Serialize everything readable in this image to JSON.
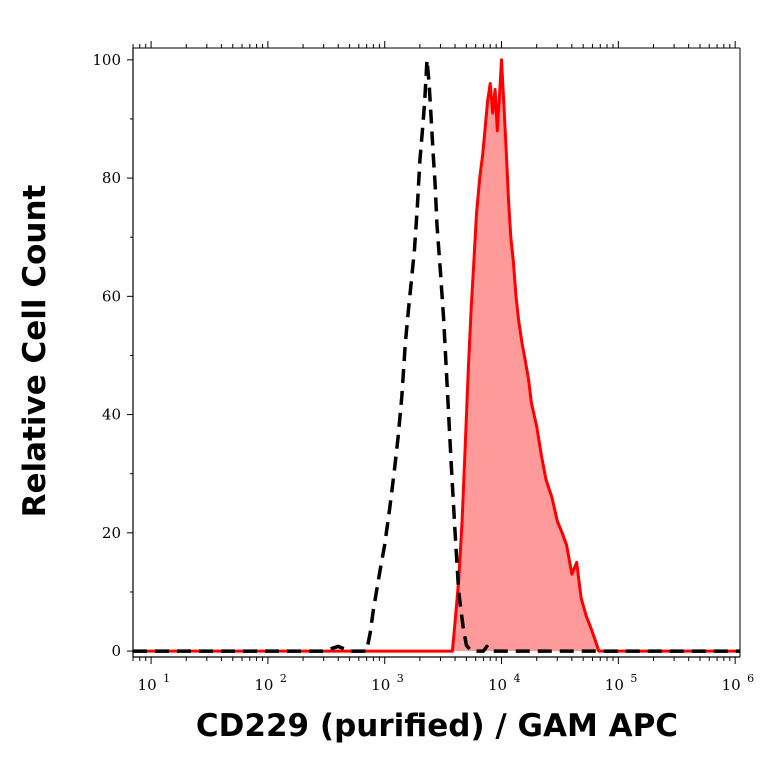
{
  "chart_data": {
    "type": "area",
    "title": "",
    "xlabel": "CD229 (purified) / GAM APC",
    "ylabel": "Relative Cell Count",
    "x_scale": "log",
    "xlim": [
      7,
      1100000
    ],
    "ylim": [
      -1,
      102
    ],
    "x_ticks": [
      {
        "base": "10",
        "exp": "1",
        "value": 10
      },
      {
        "base": "10",
        "exp": "2",
        "value": 100
      },
      {
        "base": "10",
        "exp": "3",
        "value": 1000
      },
      {
        "base": "10",
        "exp": "4",
        "value": 10000
      },
      {
        "base": "10",
        "exp": "5",
        "value": 100000
      },
      {
        "base": "10",
        "exp": "6",
        "value": 1000000
      }
    ],
    "y_ticks": [
      "0",
      "20",
      "40",
      "60",
      "80",
      "100"
    ],
    "grid": false,
    "series": [
      {
        "style": "dashed",
        "color": "#000000",
        "fill": "none",
        "points": [
          [
            7,
            0
          ],
          [
            300,
            0
          ],
          [
            400,
            0.8
          ],
          [
            500,
            0
          ],
          [
            700,
            0
          ],
          [
            750,
            3
          ],
          [
            800,
            7
          ],
          [
            900,
            13
          ],
          [
            1000,
            18
          ],
          [
            1100,
            24
          ],
          [
            1200,
            30
          ],
          [
            1300,
            36
          ],
          [
            1400,
            43
          ],
          [
            1500,
            52
          ],
          [
            1600,
            58
          ],
          [
            1700,
            63
          ],
          [
            1800,
            68
          ],
          [
            1900,
            75
          ],
          [
            2000,
            83
          ],
          [
            2100,
            88
          ],
          [
            2200,
            93
          ],
          [
            2300,
            100
          ],
          [
            2400,
            96
          ],
          [
            2500,
            90
          ],
          [
            2600,
            84
          ],
          [
            2700,
            79
          ],
          [
            2800,
            72
          ],
          [
            3000,
            64
          ],
          [
            3200,
            56
          ],
          [
            3400,
            46
          ],
          [
            3700,
            32
          ],
          [
            4000,
            20
          ],
          [
            4300,
            10
          ],
          [
            4700,
            4
          ],
          [
            5000,
            1
          ],
          [
            5500,
            0
          ],
          [
            7000,
            0
          ],
          [
            7500,
            0.8
          ],
          [
            8000,
            0
          ],
          [
            1100000,
            0
          ]
        ]
      },
      {
        "style": "solid",
        "color": "#ff0000",
        "fill": "#ff9a9a",
        "points": [
          [
            7,
            0
          ],
          [
            3000,
            0
          ],
          [
            3800,
            0
          ],
          [
            4000,
            5
          ],
          [
            4300,
            12
          ],
          [
            4600,
            22
          ],
          [
            4900,
            35
          ],
          [
            5200,
            48
          ],
          [
            5500,
            58
          ],
          [
            5800,
            66
          ],
          [
            6100,
            74
          ],
          [
            6500,
            80
          ],
          [
            6900,
            84
          ],
          [
            7200,
            88
          ],
          [
            7600,
            93
          ],
          [
            8000,
            96
          ],
          [
            8400,
            91
          ],
          [
            8800,
            95
          ],
          [
            9200,
            88
          ],
          [
            9600,
            94
          ],
          [
            10000,
            100
          ],
          [
            10500,
            92
          ],
          [
            11000,
            84
          ],
          [
            11500,
            76
          ],
          [
            12000,
            70
          ],
          [
            12600,
            66
          ],
          [
            13300,
            60
          ],
          [
            14000,
            56
          ],
          [
            15000,
            52
          ],
          [
            16000,
            49
          ],
          [
            17000,
            46
          ],
          [
            18000,
            42
          ],
          [
            20000,
            38
          ],
          [
            22000,
            33
          ],
          [
            24000,
            29
          ],
          [
            27000,
            26
          ],
          [
            30000,
            22
          ],
          [
            33000,
            20
          ],
          [
            36000,
            18
          ],
          [
            40000,
            13
          ],
          [
            44000,
            15
          ],
          [
            48000,
            9
          ],
          [
            53000,
            6
          ],
          [
            58000,
            4
          ],
          [
            63000,
            2
          ],
          [
            68000,
            0
          ],
          [
            1100000,
            0
          ]
        ]
      }
    ]
  }
}
